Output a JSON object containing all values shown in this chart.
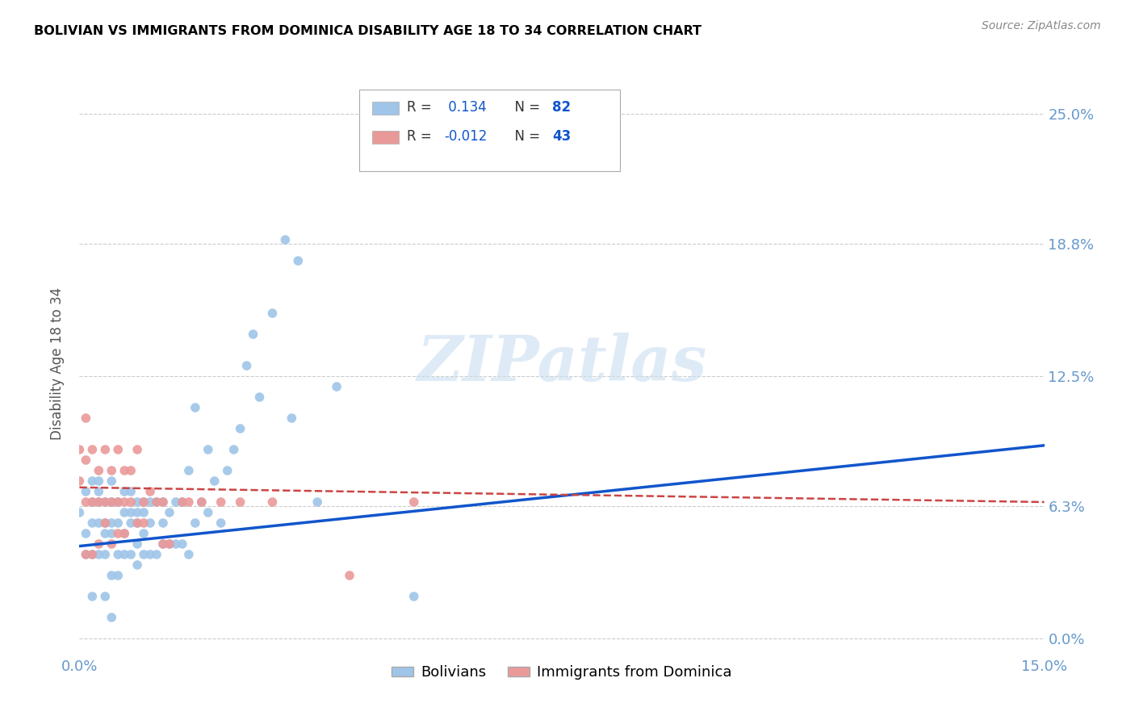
{
  "title": "BOLIVIAN VS IMMIGRANTS FROM DOMINICA DISABILITY AGE 18 TO 34 CORRELATION CHART",
  "source": "Source: ZipAtlas.com",
  "ylabel_label": "Disability Age 18 to 34",
  "xlim": [
    0.0,
    0.15
  ],
  "ylim": [
    -0.008,
    0.27
  ],
  "ytick_vals": [
    0.0,
    0.063,
    0.125,
    0.188,
    0.25
  ],
  "ytick_labels": [
    "0.0%",
    "6.3%",
    "12.5%",
    "18.8%",
    "25.0%"
  ],
  "xtick_vals": [
    0.0,
    0.15
  ],
  "xtick_labels": [
    "0.0%",
    "15.0%"
  ],
  "legend_labels": [
    "Bolivians",
    "Immigrants from Dominica"
  ],
  "bolivian_R": "0.134",
  "bolivian_N": "82",
  "dominica_R": "-0.012",
  "dominica_N": "43",
  "blue_scatter_color": "#9fc5e8",
  "pink_scatter_color": "#ea9999",
  "blue_line_color": "#1155cc",
  "pink_line_color": "#cc4444",
  "title_color": "#000000",
  "watermark_text": "ZIPatlas",
  "watermark_color": "#c9dff0",
  "background_color": "#ffffff",
  "grid_color": "#cccccc",
  "axis_tick_color": "#6699cc",
  "blue_trend_x0": 0.0,
  "blue_trend_y0": 0.044,
  "blue_trend_x1": 0.15,
  "blue_trend_y1": 0.092,
  "pink_trend_x0": 0.0,
  "pink_trend_y0": 0.072,
  "pink_trend_x1": 0.15,
  "pink_trend_y1": 0.065,
  "bolivians_x": [
    0.0,
    0.001,
    0.001,
    0.001,
    0.002,
    0.002,
    0.002,
    0.002,
    0.002,
    0.003,
    0.003,
    0.003,
    0.003,
    0.003,
    0.004,
    0.004,
    0.004,
    0.004,
    0.004,
    0.005,
    0.005,
    0.005,
    0.005,
    0.005,
    0.005,
    0.006,
    0.006,
    0.006,
    0.006,
    0.007,
    0.007,
    0.007,
    0.007,
    0.008,
    0.008,
    0.008,
    0.008,
    0.009,
    0.009,
    0.009,
    0.009,
    0.009,
    0.01,
    0.01,
    0.01,
    0.01,
    0.011,
    0.011,
    0.011,
    0.012,
    0.012,
    0.013,
    0.013,
    0.013,
    0.014,
    0.014,
    0.015,
    0.015,
    0.016,
    0.016,
    0.017,
    0.017,
    0.018,
    0.018,
    0.019,
    0.02,
    0.02,
    0.021,
    0.022,
    0.023,
    0.024,
    0.025,
    0.026,
    0.027,
    0.028,
    0.03,
    0.032,
    0.033,
    0.034,
    0.037,
    0.04,
    0.052
  ],
  "bolivians_y": [
    0.06,
    0.04,
    0.05,
    0.07,
    0.02,
    0.04,
    0.055,
    0.065,
    0.075,
    0.04,
    0.055,
    0.065,
    0.07,
    0.075,
    0.02,
    0.04,
    0.05,
    0.055,
    0.065,
    0.01,
    0.03,
    0.05,
    0.055,
    0.065,
    0.075,
    0.03,
    0.04,
    0.055,
    0.065,
    0.04,
    0.05,
    0.06,
    0.07,
    0.04,
    0.055,
    0.06,
    0.07,
    0.035,
    0.045,
    0.055,
    0.06,
    0.065,
    0.04,
    0.05,
    0.06,
    0.065,
    0.04,
    0.055,
    0.065,
    0.04,
    0.065,
    0.045,
    0.055,
    0.065,
    0.045,
    0.06,
    0.045,
    0.065,
    0.045,
    0.065,
    0.04,
    0.08,
    0.055,
    0.11,
    0.065,
    0.06,
    0.09,
    0.075,
    0.055,
    0.08,
    0.09,
    0.1,
    0.13,
    0.145,
    0.115,
    0.155,
    0.19,
    0.105,
    0.18,
    0.065,
    0.12,
    0.02
  ],
  "dominica_x": [
    0.0,
    0.0,
    0.001,
    0.001,
    0.001,
    0.001,
    0.002,
    0.002,
    0.002,
    0.003,
    0.003,
    0.003,
    0.004,
    0.004,
    0.004,
    0.005,
    0.005,
    0.005,
    0.006,
    0.006,
    0.006,
    0.007,
    0.007,
    0.007,
    0.008,
    0.008,
    0.009,
    0.009,
    0.01,
    0.01,
    0.011,
    0.012,
    0.013,
    0.013,
    0.014,
    0.016,
    0.017,
    0.019,
    0.022,
    0.025,
    0.03,
    0.042,
    0.052
  ],
  "dominica_y": [
    0.075,
    0.09,
    0.04,
    0.065,
    0.085,
    0.105,
    0.04,
    0.065,
    0.09,
    0.045,
    0.065,
    0.08,
    0.055,
    0.065,
    0.09,
    0.045,
    0.065,
    0.08,
    0.05,
    0.065,
    0.09,
    0.05,
    0.065,
    0.08,
    0.065,
    0.08,
    0.055,
    0.09,
    0.055,
    0.065,
    0.07,
    0.065,
    0.045,
    0.065,
    0.045,
    0.065,
    0.065,
    0.065,
    0.065,
    0.065,
    0.065,
    0.03,
    0.065
  ]
}
